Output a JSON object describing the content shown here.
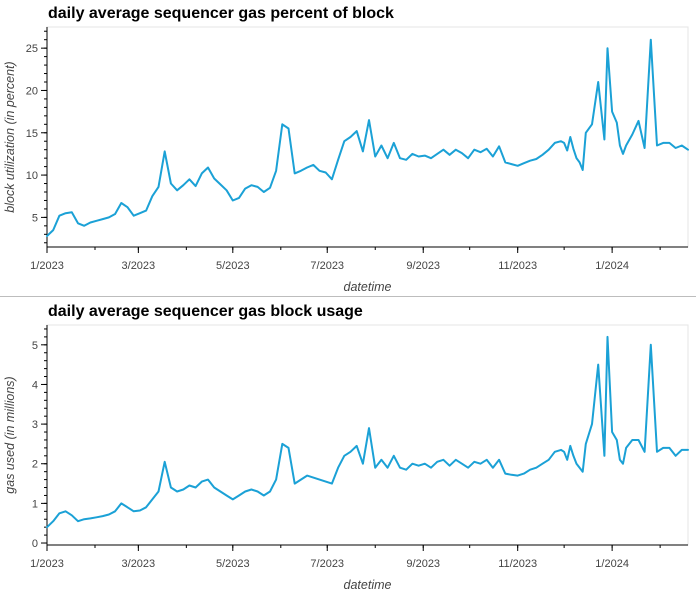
{
  "chart_data": [
    {
      "type": "line",
      "title": "daily average sequencer gas percent of block",
      "xlabel": "datetime",
      "ylabel": "block utilization (in percent)",
      "x_ticks": [
        "1/2023",
        "3/2023",
        "5/2023",
        "7/2023",
        "9/2023",
        "11/2023",
        "1/2024"
      ],
      "y_ticks": [
        5,
        10,
        15,
        20,
        25
      ],
      "xlim": [
        "2023-01-01",
        "2024-02-19"
      ],
      "ylim": [
        1.5,
        27.5
      ],
      "color": "#1ba1d6",
      "series": [
        {
          "x": [
            "2023-01-01",
            "2023-01-05",
            "2023-01-09",
            "2023-01-13",
            "2023-01-17",
            "2023-01-21",
            "2023-01-25",
            "2023-01-29",
            "2023-02-02",
            "2023-02-06",
            "2023-02-10",
            "2023-02-14",
            "2023-02-18",
            "2023-02-22",
            "2023-02-26",
            "2023-03-02",
            "2023-03-06",
            "2023-03-10",
            "2023-03-14",
            "2023-03-18",
            "2023-03-22",
            "2023-03-26",
            "2023-03-30",
            "2023-04-03",
            "2023-04-07",
            "2023-04-11",
            "2023-04-15",
            "2023-04-19",
            "2023-04-23",
            "2023-04-27",
            "2023-05-01",
            "2023-05-05",
            "2023-05-09",
            "2023-05-13",
            "2023-05-17",
            "2023-05-21",
            "2023-05-25",
            "2023-05-29",
            "2023-06-02",
            "2023-06-06",
            "2023-06-10",
            "2023-06-14",
            "2023-06-18",
            "2023-06-22",
            "2023-06-26",
            "2023-06-30",
            "2023-07-04",
            "2023-07-08",
            "2023-07-12",
            "2023-07-16",
            "2023-07-20",
            "2023-07-24",
            "2023-07-28",
            "2023-08-01",
            "2023-08-05",
            "2023-08-09",
            "2023-08-13",
            "2023-08-17",
            "2023-08-21",
            "2023-08-25",
            "2023-08-29",
            "2023-09-02",
            "2023-09-06",
            "2023-09-10",
            "2023-09-14",
            "2023-09-18",
            "2023-09-22",
            "2023-09-26",
            "2023-09-30",
            "2023-10-04",
            "2023-10-08",
            "2023-10-12",
            "2023-10-16",
            "2023-10-20",
            "2023-10-24",
            "2023-10-28",
            "2023-11-01",
            "2023-11-05",
            "2023-11-09",
            "2023-11-13",
            "2023-11-17",
            "2023-11-21",
            "2023-11-25",
            "2023-11-29",
            "2023-12-01",
            "2023-12-03",
            "2023-12-05",
            "2023-12-07",
            "2023-12-09",
            "2023-12-11",
            "2023-12-13",
            "2023-12-15",
            "2023-12-19",
            "2023-12-23",
            "2023-12-27",
            "2023-12-29",
            "2024-01-01",
            "2024-01-04",
            "2024-01-06",
            "2024-01-08",
            "2024-01-10",
            "2024-01-14",
            "2024-01-18",
            "2024-01-22",
            "2024-01-26",
            "2024-01-30",
            "2024-02-03",
            "2024-02-07",
            "2024-02-11",
            "2024-02-15",
            "2024-02-19"
          ],
          "y": [
            2.8,
            3.5,
            5.2,
            5.5,
            5.6,
            4.3,
            4.0,
            4.4,
            4.6,
            4.8,
            5.0,
            5.4,
            6.7,
            6.2,
            5.2,
            5.5,
            5.8,
            7.5,
            8.6,
            12.8,
            9.0,
            8.2,
            8.8,
            9.5,
            8.7,
            10.2,
            10.9,
            9.6,
            8.9,
            8.2,
            7.0,
            7.3,
            8.4,
            8.8,
            8.6,
            8.0,
            8.5,
            10.5,
            16.0,
            15.5,
            10.2,
            10.5,
            10.9,
            11.2,
            10.5,
            10.3,
            9.5,
            11.8,
            14.0,
            14.5,
            15.2,
            12.8,
            16.5,
            12.2,
            13.5,
            12.0,
            13.8,
            12.0,
            11.8,
            12.5,
            12.2,
            12.3,
            12.0,
            12.5,
            13.0,
            12.4,
            13.0,
            12.6,
            12.0,
            13.0,
            12.7,
            13.1,
            12.2,
            13.4,
            11.5,
            11.3,
            11.1,
            11.4,
            11.7,
            11.9,
            12.4,
            13.0,
            13.8,
            14.0,
            13.8,
            12.9,
            14.5,
            13.1,
            12.0,
            11.5,
            10.6,
            15.0,
            16.0,
            21.0,
            14.2,
            25.0,
            17.5,
            16.2,
            13.5,
            12.5,
            13.5,
            14.8,
            16.4,
            13.2,
            26.0,
            13.5,
            13.8,
            13.8,
            13.2,
            13.5,
            13.0
          ]
        }
      ]
    },
    {
      "type": "line",
      "title": "daily average sequencer gas block usage",
      "xlabel": "datetime",
      "ylabel": "gas used (in millions)",
      "x_ticks": [
        "1/2023",
        "3/2023",
        "5/2023",
        "7/2023",
        "9/2023",
        "11/2023",
        "1/2024"
      ],
      "y_ticks": [
        0,
        1,
        2,
        3,
        4,
        5
      ],
      "xlim": [
        "2023-01-01",
        "2024-02-19"
      ],
      "ylim": [
        -0.05,
        5.5
      ],
      "color": "#1ba1d6",
      "series": [
        {
          "x": [
            "2023-01-01",
            "2023-01-05",
            "2023-01-09",
            "2023-01-13",
            "2023-01-17",
            "2023-01-21",
            "2023-01-25",
            "2023-01-29",
            "2023-02-02",
            "2023-02-06",
            "2023-02-10",
            "2023-02-14",
            "2023-02-18",
            "2023-02-22",
            "2023-02-26",
            "2023-03-02",
            "2023-03-06",
            "2023-03-10",
            "2023-03-14",
            "2023-03-18",
            "2023-03-22",
            "2023-03-26",
            "2023-03-30",
            "2023-04-03",
            "2023-04-07",
            "2023-04-11",
            "2023-04-15",
            "2023-04-19",
            "2023-04-23",
            "2023-04-27",
            "2023-05-01",
            "2023-05-05",
            "2023-05-09",
            "2023-05-13",
            "2023-05-17",
            "2023-05-21",
            "2023-05-25",
            "2023-05-29",
            "2023-06-02",
            "2023-06-06",
            "2023-06-10",
            "2023-06-14",
            "2023-06-18",
            "2023-06-22",
            "2023-06-26",
            "2023-06-30",
            "2023-07-04",
            "2023-07-08",
            "2023-07-12",
            "2023-07-16",
            "2023-07-20",
            "2023-07-24",
            "2023-07-28",
            "2023-08-01",
            "2023-08-05",
            "2023-08-09",
            "2023-08-13",
            "2023-08-17",
            "2023-08-21",
            "2023-08-25",
            "2023-08-29",
            "2023-09-02",
            "2023-09-06",
            "2023-09-10",
            "2023-09-14",
            "2023-09-18",
            "2023-09-22",
            "2023-09-26",
            "2023-09-30",
            "2023-10-04",
            "2023-10-08",
            "2023-10-12",
            "2023-10-16",
            "2023-10-20",
            "2023-10-24",
            "2023-10-28",
            "2023-11-01",
            "2023-11-05",
            "2023-11-09",
            "2023-11-13",
            "2023-11-17",
            "2023-11-21",
            "2023-11-25",
            "2023-11-29",
            "2023-12-01",
            "2023-12-03",
            "2023-12-05",
            "2023-12-07",
            "2023-12-09",
            "2023-12-11",
            "2023-12-13",
            "2023-12-15",
            "2023-12-19",
            "2023-12-23",
            "2023-12-27",
            "2023-12-29",
            "2024-01-01",
            "2024-01-04",
            "2024-01-06",
            "2024-01-08",
            "2024-01-10",
            "2024-01-14",
            "2024-01-18",
            "2024-01-22",
            "2024-01-26",
            "2024-01-30",
            "2024-02-03",
            "2024-02-07",
            "2024-02-11",
            "2024-02-15",
            "2024-02-19"
          ],
          "y": [
            0.4,
            0.55,
            0.75,
            0.8,
            0.7,
            0.55,
            0.6,
            0.62,
            0.65,
            0.68,
            0.72,
            0.8,
            1.0,
            0.9,
            0.8,
            0.82,
            0.9,
            1.1,
            1.3,
            2.05,
            1.4,
            1.3,
            1.35,
            1.45,
            1.4,
            1.55,
            1.6,
            1.4,
            1.3,
            1.2,
            1.1,
            1.2,
            1.3,
            1.35,
            1.3,
            1.2,
            1.3,
            1.6,
            2.5,
            2.4,
            1.5,
            1.6,
            1.7,
            1.65,
            1.6,
            1.55,
            1.5,
            1.9,
            2.2,
            2.3,
            2.45,
            2.0,
            2.9,
            1.9,
            2.1,
            1.9,
            2.2,
            1.9,
            1.85,
            2.0,
            1.95,
            2.0,
            1.9,
            2.05,
            2.1,
            1.95,
            2.1,
            2.0,
            1.9,
            2.05,
            2.0,
            2.1,
            1.9,
            2.1,
            1.75,
            1.72,
            1.7,
            1.75,
            1.85,
            1.9,
            2.0,
            2.1,
            2.3,
            2.35,
            2.3,
            2.1,
            2.45,
            2.2,
            2.0,
            1.9,
            1.8,
            2.5,
            3.0,
            4.5,
            2.2,
            5.2,
            2.8,
            2.6,
            2.1,
            2.0,
            2.4,
            2.6,
            2.6,
            2.3,
            5.0,
            2.3,
            2.4,
            2.4,
            2.2,
            2.35,
            2.35
          ]
        }
      ]
    }
  ]
}
